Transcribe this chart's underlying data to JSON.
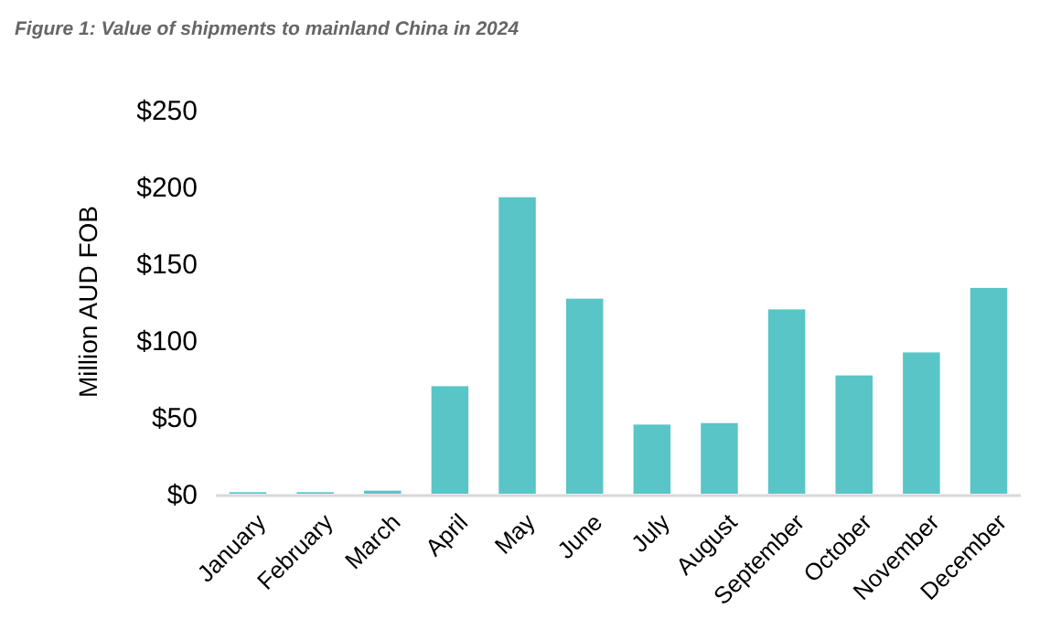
{
  "chart_data": {
    "type": "bar",
    "title": "Figure 1: Value of shipments to mainland China in 2024",
    "ylabel": "Million AUD FOB",
    "categories": [
      "January",
      "February",
      "March",
      "April",
      "May",
      "June",
      "July",
      "August",
      "September",
      "October",
      "November",
      "December"
    ],
    "values": [
      1,
      1,
      2,
      70,
      193,
      127,
      45,
      46,
      120,
      77,
      92,
      134
    ],
    "color": "#59c5c7",
    "ylim": [
      0,
      250
    ],
    "yticks": [
      {
        "value": 0,
        "label": "$0"
      },
      {
        "value": 50,
        "label": "$50"
      },
      {
        "value": 100,
        "label": "$100"
      },
      {
        "value": 150,
        "label": "$150"
      },
      {
        "value": 200,
        "label": "$200"
      },
      {
        "value": 250,
        "label": "$250"
      }
    ],
    "grid": false
  }
}
